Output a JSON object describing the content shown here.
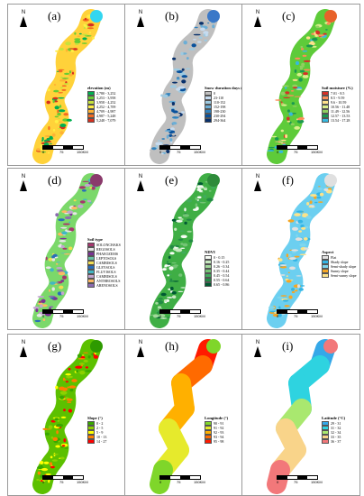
{
  "north_label": "N",
  "scale": {
    "zero": "0",
    "mid": "75",
    "end": "150KM"
  },
  "panels": [
    {
      "label": "(a)",
      "legend_title": "elevation (m)",
      "style": "mosaic",
      "classes": [
        {
          "label": "2,780 - 3,252",
          "color": "#00b050"
        },
        {
          "label": "3,253 - 3,958",
          "color": "#66cc33"
        },
        {
          "label": "3,958 - 4,252",
          "color": "#c6e23c"
        },
        {
          "label": "4,252 - 4,709",
          "color": "#ffee44"
        },
        {
          "label": "4,709 - 4,987",
          "color": "#ffb233"
        },
        {
          "label": "4,987 - 5,248",
          "color": "#f36b22"
        },
        {
          "label": "5,248 - 7,079",
          "color": "#d7301f"
        }
      ],
      "base": "#ffd23a",
      "top_color": "#33d6f0"
    },
    {
      "label": "(b)",
      "legend_title": "Snow duration days (d)",
      "style": "mosaic",
      "classes": [
        {
          "label": "0",
          "color": "#bfbfbf"
        },
        {
          "label": "23-110",
          "color": "#c6dbef"
        },
        {
          "label": "110-152",
          "color": "#9ecae1"
        },
        {
          "label": "152-198",
          "color": "#6baed6"
        },
        {
          "label": "198-230",
          "color": "#3182bd"
        },
        {
          "label": "230-294",
          "color": "#08519c"
        },
        {
          "label": "294-364",
          "color": "#08306b"
        }
      ],
      "base": "#bfbfbf",
      "top_color": "#3a78c8"
    },
    {
      "label": "(c)",
      "legend_title": "Soil moisture (%)",
      "style": "mosaic",
      "classes": [
        {
          "label": "7.01 - 8.5",
          "color": "#d73027"
        },
        {
          "label": "8.5 - 9.59",
          "color": "#fc8d59"
        },
        {
          "label": "9.6 - 10.59",
          "color": "#fee08b"
        },
        {
          "label": "10.56 - 11.48",
          "color": "#d9ef8b"
        },
        {
          "label": "11.49 - 12.56",
          "color": "#91cf60"
        },
        {
          "label": "12.57 - 13.53",
          "color": "#1a9850"
        },
        {
          "label": "13.54 - 17.28",
          "color": "#35b9e0"
        }
      ],
      "base": "#5ecb3a",
      "top_color": "#e8622a"
    },
    {
      "label": "(d)",
      "legend_title": "Soil type",
      "style": "mosaic",
      "classes": [
        {
          "label": "SOLONCHAKS",
          "color": "#a6356e"
        },
        {
          "label": "REGOSOLS",
          "color": "#e7e7e7"
        },
        {
          "label": "PHAEOZEMS",
          "color": "#7b3294"
        },
        {
          "label": "LEPTOSOLS",
          "color": "#66c2a4"
        },
        {
          "label": "CAMBISOLS",
          "color": "#f2dd52"
        },
        {
          "label": "GLEYSOLS",
          "color": "#2a6eb8"
        },
        {
          "label": "FLUVISOLS",
          "color": "#41b6c4"
        },
        {
          "label": "CAMBISOLS",
          "color": "#c2a5cf"
        },
        {
          "label": "ANTHROSOLS",
          "color": "#fdb863"
        },
        {
          "label": "ARENOSOLS",
          "color": "#8c6bb1"
        }
      ],
      "base": "#7bd86a",
      "top_color": "#8a3a6b"
    },
    {
      "label": "(e)",
      "legend_title": "NDVI",
      "style": "mosaic",
      "classes": [
        {
          "label": "0 - 0.15",
          "color": "#f7fcf5"
        },
        {
          "label": "0.16 - 0.25",
          "color": "#c7e9c0"
        },
        {
          "label": "0.26 - 0.34",
          "color": "#a1d99b"
        },
        {
          "label": "0.35 - 0.44",
          "color": "#74c476"
        },
        {
          "label": "0.45 - 0.54",
          "color": "#41ab5d"
        },
        {
          "label": "0.55 - 0.64",
          "color": "#238b45"
        },
        {
          "label": "0.65 - 0.86",
          "color": "#005a32"
        }
      ],
      "base": "#3fae45",
      "top_color": "#2e8b3a"
    },
    {
      "label": "(f)",
      "legend_title": "Aspect",
      "style": "mosaic",
      "classes": [
        {
          "label": "Flat",
          "color": "#e0e0e0"
        },
        {
          "label": "Shady slope",
          "color": "#33b5e5"
        },
        {
          "label": "Semi-shady slope",
          "color": "#7fd6ee"
        },
        {
          "label": "Sunny slope",
          "color": "#f5a623"
        },
        {
          "label": "Semi-sunny slope",
          "color": "#fce38a"
        }
      ],
      "base": "#6ccff0",
      "top_color": "#e0e0e0"
    },
    {
      "label": "(g)",
      "legend_title": "Slope (°)",
      "style": "mosaic",
      "classes": [
        {
          "label": "0 - 2",
          "color": "#38a800"
        },
        {
          "label": "2 - 5",
          "color": "#8bd100"
        },
        {
          "label": "5 - 9",
          "color": "#ffff00"
        },
        {
          "label": "10 - 13",
          "color": "#ff8000"
        },
        {
          "label": "14 - 27",
          "color": "#ff0000"
        }
      ],
      "base": "#5cc000",
      "top_color": "#2e9a00"
    },
    {
      "label": "(h)",
      "legend_title": "Longitude (°)",
      "style": "bands",
      "classes": [
        {
          "label": "90 - 91",
          "color": "#7fd62a"
        },
        {
          "label": "91 - 92",
          "color": "#e6ea2c"
        },
        {
          "label": "92 - 93",
          "color": "#ffb000"
        },
        {
          "label": "93 - 94",
          "color": "#ff6a00"
        },
        {
          "label": "95 - 98",
          "color": "#ff1a00"
        }
      ],
      "bands_order": [
        0,
        1,
        1,
        2,
        2,
        3,
        4
      ]
    },
    {
      "label": "(i)",
      "legend_title": "Latitude (°C)",
      "style": "bands",
      "classes": [
        {
          "label": "29 - 31",
          "color": "#35a8e8"
        },
        {
          "label": "31 - 32",
          "color": "#2ed3e0"
        },
        {
          "label": "32 - 34",
          "color": "#a9e86f"
        },
        {
          "label": "33 - 35",
          "color": "#f9d48a"
        },
        {
          "label": "36 - 37",
          "color": "#f2787a"
        }
      ],
      "bands_order": [
        4,
        3,
        3,
        2,
        1,
        1,
        0
      ]
    }
  ]
}
